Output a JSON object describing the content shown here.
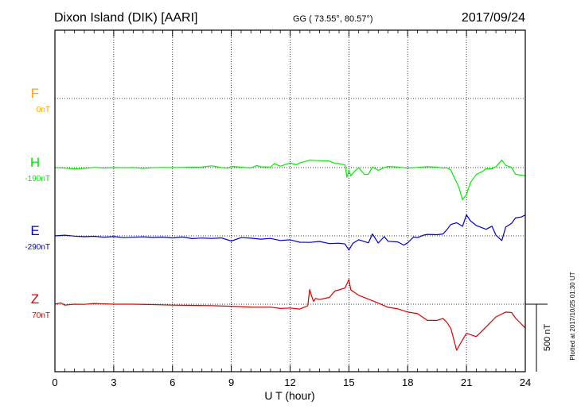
{
  "header": {
    "station": "Dixon Island (DIK)  [AARI]",
    "coords": "GG ( 73.55°,  80.57°)",
    "date": "2017/09/24"
  },
  "plotted_note": "Plotted at 2017/10/25 01:30 UT",
  "scale_label": "500 nT",
  "colors": {
    "F": "#ffa500",
    "H": "#00ee00",
    "E": "#0000cc",
    "Z": "#dd0000",
    "axes": "#000000",
    "grid": "#000000"
  },
  "chart_data": {
    "type": "line",
    "xlabel": "U T (hour)",
    "ylabel": "",
    "xlim": [
      0,
      24
    ],
    "x_ticks": [
      0,
      3,
      6,
      9,
      12,
      15,
      18,
      21,
      24
    ],
    "x_tick_labels": [
      "0",
      "3",
      "6",
      "9",
      "12",
      "15",
      "18",
      "21",
      "24"
    ],
    "grid": true,
    "scale_bar_nT": 500,
    "series": [
      {
        "name": "F",
        "baseline_label": "0nT",
        "color": "#ffa500",
        "x": [],
        "values": []
      },
      {
        "name": "H",
        "baseline_label": "-190nT",
        "color": "#00ee00",
        "x": [
          0,
          0.5,
          1,
          1.5,
          2,
          2.5,
          3,
          3.5,
          4,
          4.5,
          5,
          5.5,
          6,
          6.5,
          7,
          7.5,
          8,
          8.5,
          8.8,
          9,
          9.5,
          10,
          10.3,
          10.5,
          11,
          11.2,
          11.5,
          12,
          12.3,
          12.5,
          13,
          13.5,
          14,
          14.3,
          14.5,
          14.8,
          14.9,
          15,
          15.1,
          15.3,
          15.5,
          15.8,
          16,
          16.2,
          16.5,
          16.8,
          17,
          17.5,
          18,
          18.5,
          19,
          19.5,
          19.8,
          20,
          20.2,
          20.4,
          20.6,
          20.8,
          21,
          21.2,
          21.5,
          21.8,
          22,
          22.3,
          22.5,
          22.8,
          23,
          23.3,
          23.5,
          24
        ],
        "values": [
          -190,
          -194,
          -200,
          -196,
          -189,
          -194,
          -190,
          -192,
          -190,
          -196,
          -191,
          -189,
          -190,
          -189,
          -187,
          -186,
          -177,
          -190,
          -195,
          -181,
          -187,
          -193,
          -175,
          -184,
          -186,
          -161,
          -180,
          -156,
          -168,
          -155,
          -135,
          -138,
          -141,
          -160,
          -160,
          -171,
          -261,
          -209,
          -251,
          -216,
          -191,
          -242,
          -239,
          -186,
          -210,
          -190,
          -182,
          -186,
          -194,
          -189,
          -183,
          -187,
          -194,
          -192,
          -207,
          -270,
          -331,
          -429,
          -389,
          -303,
          -241,
          -220,
          -199,
          -198,
          -183,
          -135,
          -174,
          -188,
          -240,
          -250
        ]
      },
      {
        "name": "E",
        "baseline_label": "-290nT",
        "color": "#0000cc",
        "x": [
          0,
          0.5,
          1,
          1.5,
          2,
          2.5,
          3,
          3.5,
          4,
          4.5,
          5,
          5.5,
          6,
          6.5,
          7,
          7.5,
          8,
          8.5,
          9,
          9.5,
          10,
          10.5,
          11,
          11.5,
          12,
          12.5,
          13,
          13.5,
          14,
          14.5,
          14.8,
          15,
          15.2,
          15.5,
          16,
          16.2,
          16.5,
          16.8,
          17,
          17.5,
          17.8,
          18,
          18.3,
          18.5,
          18.8,
          19,
          19.5,
          19.8,
          20,
          20.2,
          20.5,
          20.8,
          21,
          21.2,
          21.5,
          21.8,
          22,
          22.3,
          22.5,
          22.8,
          23,
          23.3,
          23.5,
          23.8,
          24
        ],
        "values": [
          -290,
          -285,
          -292,
          -296,
          -293,
          -300,
          -295,
          -303,
          -300,
          -297,
          -302,
          -299,
          -305,
          -298,
          -310,
          -306,
          -309,
          -305,
          -328,
          -303,
          -307,
          -314,
          -309,
          -324,
          -319,
          -337,
          -338,
          -331,
          -347,
          -344,
          -350,
          -395,
          -345,
          -319,
          -341,
          -276,
          -343,
          -296,
          -330,
          -335,
          -358,
          -341,
          -298,
          -303,
          -285,
          -279,
          -281,
          -276,
          -244,
          -206,
          -193,
          -219,
          -134,
          -178,
          -213,
          -230,
          -241,
          -218,
          -285,
          -325,
          -225,
          -197,
          -157,
          -150,
          -135
        ]
      },
      {
        "name": "Z",
        "baseline_label": "70nT",
        "color": "#dd0000",
        "x": [
          0,
          0.3,
          0.5,
          1,
          1.5,
          2,
          3,
          4,
          5,
          6,
          7,
          8,
          9,
          10,
          11,
          11.5,
          12,
          12.5,
          12.9,
          13,
          13.1,
          13.2,
          13.3,
          13.5,
          14,
          14.3,
          14.5,
          14.8,
          15,
          15.1,
          15.5,
          16,
          16.5,
          17,
          17.5,
          18,
          18.5,
          19,
          19.5,
          19.8,
          20,
          20.2,
          20.5,
          20.7,
          21,
          21.5,
          22,
          22.5,
          23,
          23.3,
          23.5,
          24
        ],
        "values": [
          70,
          80,
          63,
          70,
          69,
          75,
          70,
          70,
          67,
          63,
          61,
          59,
          55,
          49,
          48,
          38,
          42,
          34,
          58,
          178,
          130,
          90,
          113,
          105,
          120,
          169,
          176,
          190,
          253,
          176,
          136,
          107,
          78,
          47,
          35,
          12,
          0,
          -50,
          -50,
          -35,
          -65,
          -108,
          -272,
          -219,
          -146,
          -170,
          -98,
          -24,
          12,
          8,
          -33,
          -106
        ]
      }
    ]
  }
}
